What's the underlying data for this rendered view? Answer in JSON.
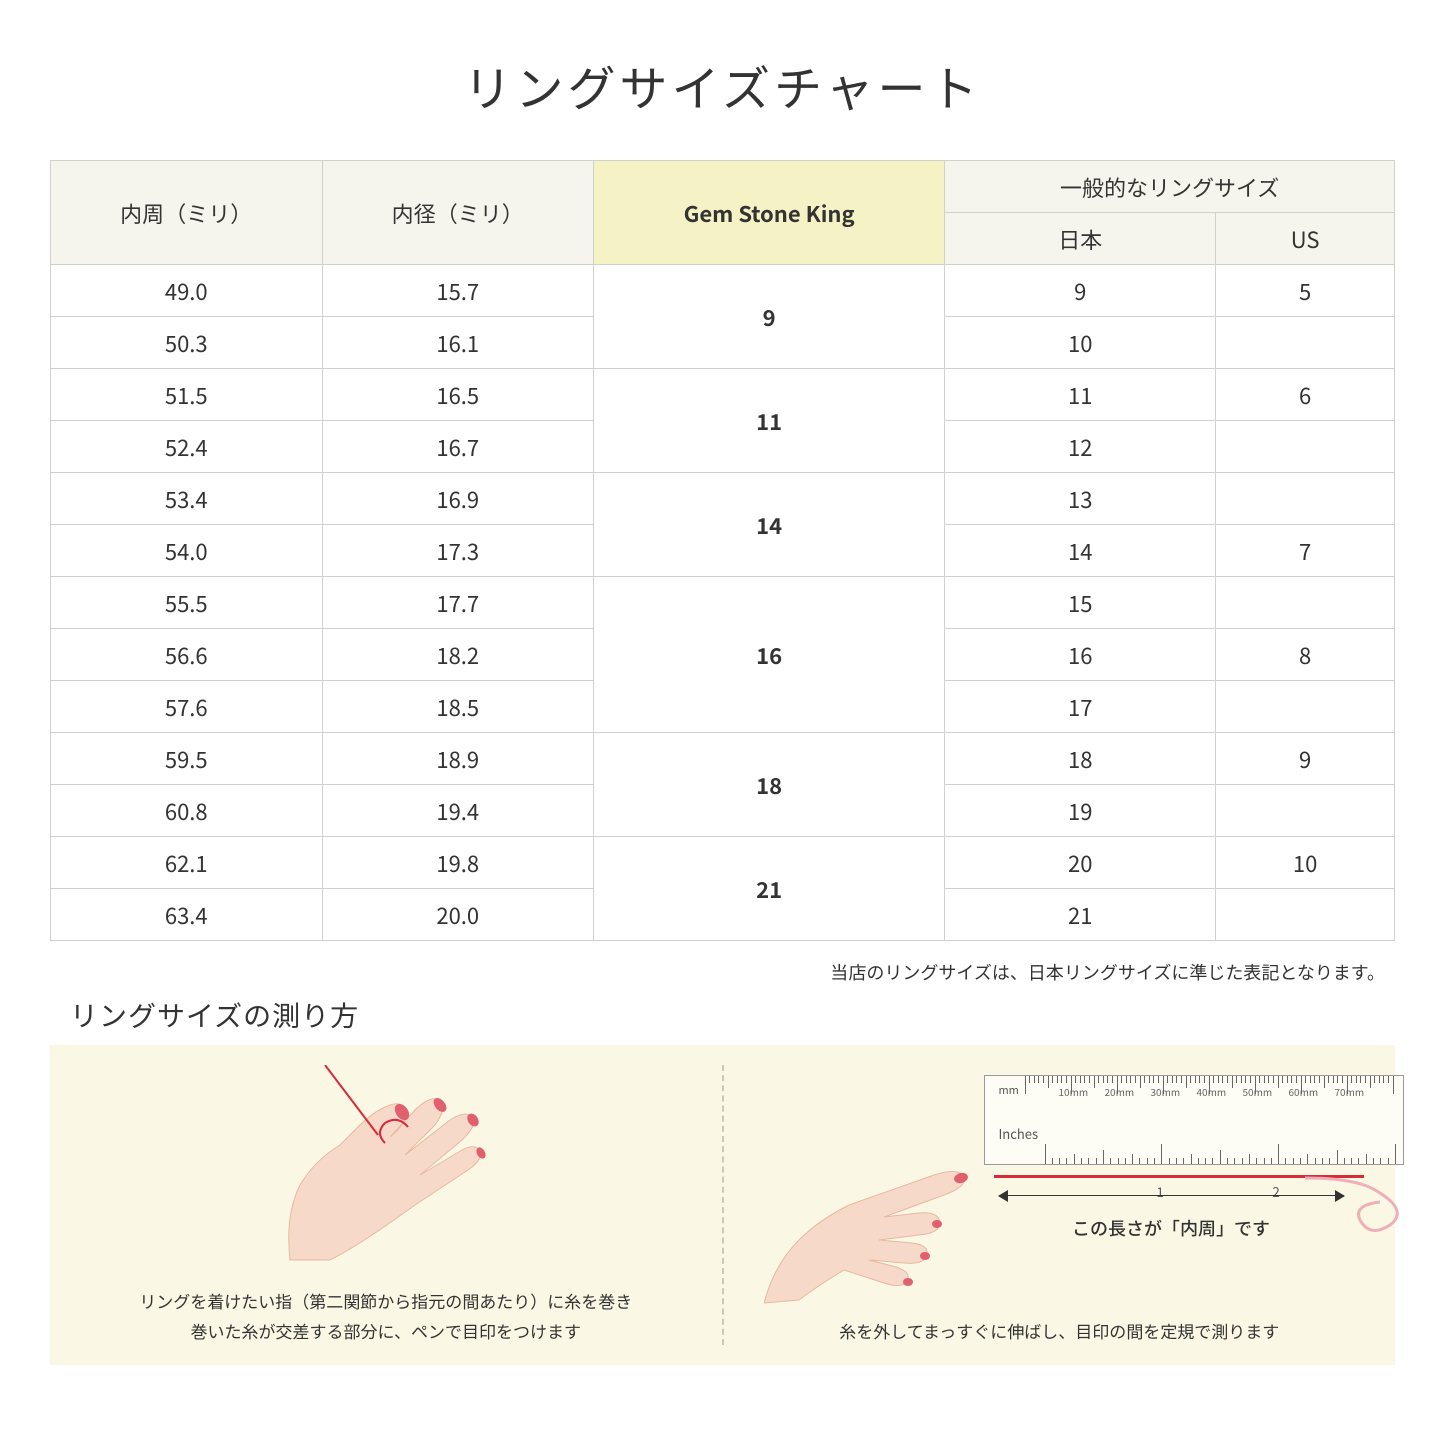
{
  "title": "リングサイズチャート",
  "table": {
    "headers": {
      "col1": "内周（ミリ）",
      "col2": "内径（ミリ）",
      "col3": "Gem Stone King",
      "col4_group": "一般的なリングサイズ",
      "col4a": "日本",
      "col4b": "US"
    },
    "rows": [
      {
        "c": "49.0",
        "d": "15.7",
        "gsk": "9",
        "jp": "9",
        "us": "5",
        "gsk_span": 2
      },
      {
        "c": "50.3",
        "d": "16.1",
        "jp": "10",
        "us": ""
      },
      {
        "c": "51.5",
        "d": "16.5",
        "gsk": "11",
        "jp": "11",
        "us": "6",
        "gsk_span": 2
      },
      {
        "c": "52.4",
        "d": "16.7",
        "jp": "12",
        "us": ""
      },
      {
        "c": "53.4",
        "d": "16.9",
        "gsk": "14",
        "jp": "13",
        "us": "",
        "gsk_span": 2
      },
      {
        "c": "54.0",
        "d": "17.3",
        "jp": "14",
        "us": "7"
      },
      {
        "c": "55.5",
        "d": "17.7",
        "gsk": "16",
        "jp": "15",
        "us": "",
        "gsk_span": 3
      },
      {
        "c": "56.6",
        "d": "18.2",
        "jp": "16",
        "us": "8"
      },
      {
        "c": "57.6",
        "d": "18.5",
        "jp": "17",
        "us": ""
      },
      {
        "c": "59.5",
        "d": "18.9",
        "gsk": "18",
        "jp": "18",
        "us": "9",
        "gsk_span": 2
      },
      {
        "c": "60.8",
        "d": "19.4",
        "jp": "19",
        "us": ""
      },
      {
        "c": "62.1",
        "d": "19.8",
        "gsk": "21",
        "jp": "20",
        "us": "10",
        "gsk_span": 2
      },
      {
        "c": "63.4",
        "d": "20.0",
        "jp": "21",
        "us": ""
      }
    ]
  },
  "note": "当店のリングサイズは、日本リングサイズに準じた表記となります。",
  "howto": {
    "title": "リングサイズの測り方",
    "left_caption_l1": "リングを着けたい指（第二関節から指元の間あたり）に糸を巻き",
    "left_caption_l2": "巻いた糸が交差する部分に、ペンで目印をつけます",
    "right_arrow_label": "この長さが「内周」です",
    "right_caption": "糸を外してまっすぐに伸ばし、目印の間を定規で測ります",
    "ruler_mm_label": "mm",
    "ruler_in_label": "Inches",
    "ruler_mm_ticks": [
      "10mm",
      "20mm",
      "30mm",
      "40mm",
      "50mm",
      "60mm",
      "70mm"
    ],
    "ruler_in_ticks": [
      "1",
      "2"
    ]
  },
  "colors": {
    "page_bg": "#ffffff",
    "header_bg": "#f5f5ed",
    "gsk_bg": "#f5f3c5",
    "border": "#d0d0cc",
    "howto_bg": "#faf8e4",
    "skin": "#f7d9c9",
    "nail": "#e0606e",
    "thread": "#d82b3a"
  }
}
